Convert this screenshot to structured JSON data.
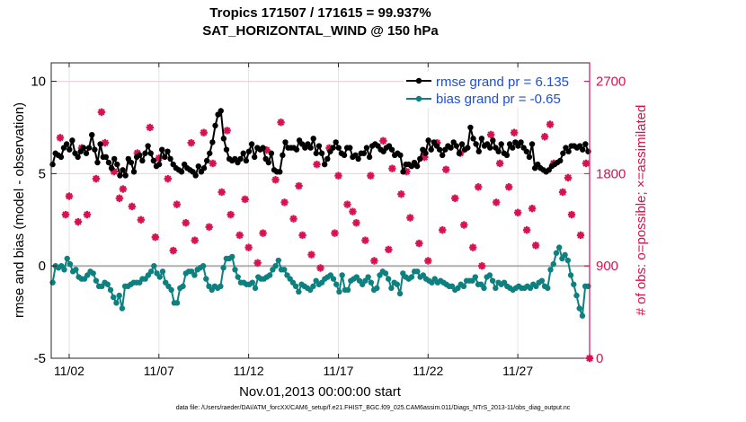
{
  "figure": {
    "title_line1": "Tropics 171507 / 171615 = 99.937%",
    "title_line2": "SAT_HORIZONTAL_WIND @ 150 hPa",
    "data_file_note": "data file: /Users/raeder/DAI/ATM_forcXX/CAM6_setup/f.e21.FHIST_BGC.f09_025.CAM6assim.011/Diags_NTrS_2013-11/obs_diag_output.nc"
  },
  "chart_data": {
    "type": "line",
    "xlabel": "Nov.01,2013 00:00:00 start",
    "ylabel_left": "rmse and bias (model - observation)",
    "ylabel_right": "# of obs: o=possible; ×=assimilated",
    "x_range": [
      0.5,
      30.5
    ],
    "ylim_left": [
      -5,
      11
    ],
    "ylim_right": [
      0,
      2880
    ],
    "left_ticks": [
      "-5",
      "0",
      "5",
      "10"
    ],
    "right_ticks": [
      "0",
      "900",
      "1800",
      "2700"
    ],
    "x_tick_positions": [
      1.5,
      6.5,
      11.5,
      16.5,
      21.5,
      26.5
    ],
    "x_tick_labels": [
      "11/02",
      "11/07",
      "11/12",
      "11/17",
      "11/22",
      "11/27"
    ],
    "legend_location": "top-right",
    "colors": {
      "rmse": "#000000",
      "bias": "#0e8080",
      "obs": "#d6124f",
      "zero": "#b0b0b0"
    },
    "series": [
      {
        "name": "rmse grand pr = 6.135",
        "color": "#000000",
        "values": [
          5.5,
          6.1,
          6.0,
          5.9,
          6.4,
          6.6,
          6.3,
          6.8,
          6.1,
          5.9,
          6.2,
          6.4,
          6.1,
          6.4,
          7.1,
          6.3,
          5.6,
          6.6,
          5.9,
          5.9,
          5.6,
          5.3,
          5.8,
          5.5,
          4.9,
          5.2,
          4.9,
          5.8,
          5.6,
          5.1,
          5.9,
          6.0,
          5.7,
          6.1,
          6.5,
          6.1,
          5.7,
          5.4,
          5.5,
          6.3,
          5.9,
          6.2,
          5.8,
          5.5,
          5.3,
          5.2,
          5.1,
          5.5,
          5.3,
          5.2,
          5.1,
          4.9,
          5.4,
          5.1,
          5.3,
          5.7,
          6.1,
          6.7,
          7.6,
          8.2,
          8.4,
          6.9,
          6.3,
          5.8,
          5.7,
          5.8,
          5.6,
          5.8,
          6.1,
          5.7,
          6.2,
          6.6,
          5.9,
          6.4,
          6.3,
          6.4,
          5.8,
          5.6,
          6.1,
          5.2,
          5.1,
          5.1,
          6.0,
          6.7,
          6.4,
          6.4,
          6.4,
          6.3,
          6.8,
          6.6,
          6.4,
          6.6,
          6.4,
          6.9,
          6.1,
          6.5,
          6.1,
          5.5,
          5.8,
          6.2,
          6.4,
          6.7,
          6.4,
          6.1,
          6.0,
          6.4,
          6.4,
          5.9,
          6.0,
          5.8,
          6.1,
          6.1,
          6.4,
          5.9,
          6.5,
          6.6,
          6.5,
          6.3,
          6.2,
          6.4,
          6.5,
          6.3,
          6.0,
          6.1,
          6.0,
          5.1,
          5.5,
          5.5,
          5.4,
          5.6,
          5.4,
          5.8,
          6.3,
          6.1,
          6.8,
          6.3,
          6.7,
          6.5,
          6.3,
          6.0,
          6.3,
          6.5,
          6.4,
          6.7,
          6.5,
          6.1,
          6.6,
          6.3,
          6.4,
          7.5,
          6.9,
          6.6,
          6.2,
          6.9,
          6.5,
          6.6,
          6.4,
          6.8,
          6.4,
          6.2,
          6.6,
          6.1,
          6.0,
          6.6,
          6.4,
          6.7,
          6.5,
          6.7,
          6.4,
          6.2,
          5.9,
          6.6,
          5.3,
          5.5,
          5.3,
          5.2,
          5.1,
          5.2,
          5.4,
          5.5,
          5.6,
          5.7,
          6.1,
          6.4,
          6.2,
          6.5,
          6.5,
          6.4,
          6.5,
          6.3,
          6.6,
          6.2
        ]
      },
      {
        "name": "bias grand pr = -0.65",
        "color": "#0e8080",
        "values": [
          -0.9,
          0.0,
          -0.1,
          0.0,
          -0.2,
          0.4,
          0.1,
          -0.3,
          -0.2,
          -0.6,
          -0.7,
          -0.7,
          -0.5,
          -0.3,
          -0.4,
          -0.8,
          -1.1,
          -1.1,
          -0.9,
          -1.0,
          -1.3,
          -1.7,
          -2.0,
          -1.6,
          -2.3,
          -1.1,
          -1.1,
          -1.0,
          -0.9,
          -0.9,
          -0.9,
          -0.7,
          -0.7,
          -0.5,
          -0.3,
          0.0,
          -0.4,
          -0.6,
          -0.3,
          -0.9,
          -1.1,
          -1.3,
          -2.0,
          -2.0,
          -1.2,
          -1.1,
          -0.4,
          -0.3,
          -0.3,
          -0.5,
          -0.2,
          -0.1,
          0.0,
          -0.7,
          -1.1,
          -1.3,
          -1.1,
          -1.2,
          -1.1,
          -0.1,
          0.4,
          0.4,
          0.5,
          -0.2,
          -0.6,
          -0.9,
          -0.9,
          -1.0,
          -1.0,
          -0.9,
          -1.2,
          -0.6,
          -0.7,
          -0.7,
          -0.6,
          -0.5,
          -0.2,
          0.0,
          0.3,
          -0.2,
          -0.2,
          -0.5,
          -0.7,
          -0.9,
          -1.1,
          -1.4,
          -1.0,
          -1.1,
          -1.2,
          -1.3,
          -1.1,
          -0.8,
          -1.0,
          -0.9,
          -0.7,
          -0.6,
          -0.5,
          -0.7,
          -1.0,
          -1.4,
          -0.5,
          -1.3,
          -1.3,
          -0.8,
          -0.7,
          -0.6,
          -0.8,
          -1.0,
          -0.8,
          -0.6,
          -0.9,
          -1.3,
          -1.2,
          -0.5,
          -0.3,
          -0.4,
          -0.7,
          -1.2,
          -0.9,
          -1.0,
          -1.5,
          -0.4,
          -0.6,
          -0.7,
          -0.6,
          -0.3,
          -0.3,
          -0.6,
          -0.5,
          -0.7,
          -0.8,
          -0.9,
          -0.7,
          -0.9,
          -0.8,
          -0.9,
          -1.0,
          -1.1,
          -1.1,
          -1.3,
          -1.2,
          -1.0,
          -1.1,
          -0.8,
          -0.8,
          -0.8,
          -0.6,
          -1.0,
          -1.0,
          -1.2,
          -0.6,
          -0.5,
          -0.8,
          -1.2,
          -0.9,
          -1.0,
          -0.9,
          -1.1,
          -1.2,
          -1.3,
          -1.2,
          -1.1,
          -1.2,
          -1.2,
          -1.1,
          -1.2,
          -1.0,
          -1.1,
          -0.9,
          -0.8,
          -1.1,
          -1.2,
          -0.2,
          0.1,
          0.7,
          1.0,
          0.4,
          0.6,
          0.3,
          -0.5,
          -1.0,
          -1.6,
          -2.3,
          -2.7,
          -1.1,
          -1.1
        ]
      }
    ],
    "obs_markers": [
      [
        1.0,
        2150
      ],
      [
        1.5,
        1580
      ],
      [
        2.0,
        1330
      ],
      [
        2.5,
        1400
      ],
      [
        3.0,
        1750
      ],
      [
        3.5,
        2100
      ],
      [
        4.0,
        1820
      ],
      [
        4.5,
        1650
      ],
      [
        5.0,
        1480
      ],
      [
        5.5,
        1350
      ],
      [
        6.0,
        2250
      ],
      [
        6.5,
        1950
      ],
      [
        7.0,
        1750
      ],
      [
        7.5,
        1500
      ],
      [
        8.0,
        1320
      ],
      [
        8.5,
        1150
      ],
      [
        9.0,
        2200
      ],
      [
        9.5,
        1900
      ],
      [
        10.0,
        1620
      ],
      [
        10.5,
        1400
      ],
      [
        11.0,
        1200
      ],
      [
        11.5,
        1080
      ],
      [
        12.0,
        930
      ],
      [
        12.5,
        2030
      ],
      [
        13.0,
        1740
      ],
      [
        13.5,
        1520
      ],
      [
        14.0,
        1360
      ],
      [
        14.5,
        1200
      ],
      [
        15.0,
        1010
      ],
      [
        15.5,
        880
      ],
      [
        16.0,
        2050
      ],
      [
        16.5,
        1780
      ],
      [
        17.0,
        1500
      ],
      [
        17.5,
        1320
      ],
      [
        18.0,
        1150
      ],
      [
        18.5,
        950
      ],
      [
        19.0,
        2120
      ],
      [
        19.5,
        1850
      ],
      [
        20.0,
        1600
      ],
      [
        20.5,
        1370
      ],
      [
        21.0,
        1120
      ],
      [
        21.5,
        950
      ],
      [
        22.0,
        2100
      ],
      [
        22.5,
        1840
      ],
      [
        23.0,
        1560
      ],
      [
        23.5,
        1300
      ],
      [
        24.0,
        1080
      ],
      [
        24.5,
        900
      ],
      [
        25.0,
        2180
      ],
      [
        25.5,
        1900
      ],
      [
        26.0,
        1670
      ],
      [
        26.5,
        1420
      ],
      [
        27.0,
        1250
      ],
      [
        27.5,
        1100
      ],
      [
        28.0,
        2160
      ],
      [
        28.5,
        1900
      ],
      [
        29.0,
        1620
      ],
      [
        29.5,
        1400
      ],
      [
        30.0,
        1200
      ],
      [
        30.5,
        0
      ],
      [
        1.3,
        1400
      ],
      [
        2.2,
        2050
      ],
      [
        3.3,
        2400
      ],
      [
        4.3,
        1560
      ],
      [
        5.3,
        2000
      ],
      [
        6.3,
        1180
      ],
      [
        7.3,
        1050
      ],
      [
        8.3,
        2100
      ],
      [
        9.3,
        1280
      ],
      [
        10.3,
        2220
      ],
      [
        11.3,
        1550
      ],
      [
        12.3,
        1220
      ],
      [
        13.3,
        2300
      ],
      [
        14.3,
        1680
      ],
      [
        15.3,
        1890
      ],
      [
        16.3,
        1220
      ],
      [
        17.3,
        1430
      ],
      [
        18.3,
        1780
      ],
      [
        19.3,
        1060
      ],
      [
        20.3,
        1820
      ],
      [
        21.3,
        1960
      ],
      [
        22.3,
        1250
      ],
      [
        23.3,
        2000
      ],
      [
        24.3,
        1670
      ],
      [
        25.3,
        1520
      ],
      [
        26.3,
        2200
      ],
      [
        27.3,
        1460
      ],
      [
        28.3,
        2280
      ],
      [
        29.3,
        1760
      ],
      [
        30.3,
        1900
      ]
    ]
  }
}
